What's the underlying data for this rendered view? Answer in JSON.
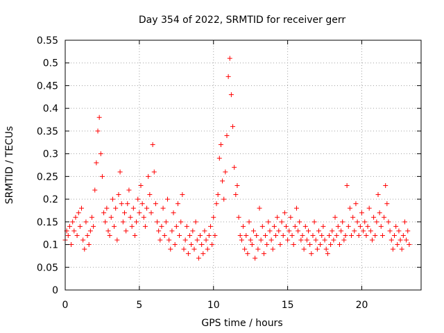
{
  "chart_data": {
    "type": "scatter",
    "title": "Day 354 of 2022, SRMTID for receiver gerr",
    "xlabel": "GPS time / hours",
    "ylabel": "SRMTID / TECUs",
    "xlim": [
      0,
      24
    ],
    "ylim": [
      0,
      0.55
    ],
    "xticks": [
      0,
      5,
      10,
      15,
      20
    ],
    "xtick_labels": [
      "0",
      "5",
      "10",
      "15",
      "20"
    ],
    "yticks": [
      0,
      0.05,
      0.1,
      0.15,
      0.2,
      0.25,
      0.3,
      0.35,
      0.4,
      0.45,
      0.5,
      0.55
    ],
    "ytick_labels": [
      "0",
      "0.05",
      "0.1",
      "0.15",
      "0.2",
      "0.25",
      "0.3",
      "0.35",
      "0.4",
      "0.45",
      "0.5",
      "0.55"
    ],
    "grid": true,
    "marker": "+",
    "color": "#ff0000",
    "x_step_hours": 0.1,
    "series": [
      {
        "name": "SRMTID",
        "x_start": 0,
        "values": [
          0.11,
          0.13,
          0.12,
          0.14,
          0.1,
          0.15,
          0.13,
          0.16,
          0.12,
          0.17,
          0.14,
          0.18,
          0.11,
          0.09,
          0.15,
          0.12,
          0.1,
          0.13,
          0.16,
          0.14,
          0.22,
          0.28,
          0.35,
          0.38,
          0.3,
          0.25,
          0.17,
          0.15,
          0.18,
          0.13,
          0.12,
          0.16,
          0.2,
          0.14,
          0.18,
          0.11,
          0.21,
          0.26,
          0.19,
          0.15,
          0.17,
          0.13,
          0.19,
          0.22,
          0.16,
          0.14,
          0.18,
          0.12,
          0.15,
          0.2,
          0.17,
          0.23,
          0.19,
          0.16,
          0.14,
          0.18,
          0.25,
          0.21,
          0.17,
          0.32,
          0.26,
          0.19,
          0.15,
          0.13,
          0.11,
          0.14,
          0.18,
          0.12,
          0.15,
          0.2,
          0.11,
          0.09,
          0.13,
          0.17,
          0.1,
          0.14,
          0.19,
          0.12,
          0.15,
          0.21,
          0.09,
          0.11,
          0.14,
          0.08,
          0.12,
          0.1,
          0.13,
          0.09,
          0.15,
          0.11,
          0.07,
          0.12,
          0.1,
          0.08,
          0.13,
          0.11,
          0.09,
          0.12,
          0.14,
          0.1,
          0.16,
          0.12,
          0.19,
          0.21,
          0.29,
          0.32,
          0.24,
          0.2,
          0.26,
          0.34,
          0.47,
          0.51,
          0.43,
          0.36,
          0.27,
          0.21,
          0.23,
          0.16,
          0.12,
          0.11,
          0.14,
          0.09,
          0.12,
          0.08,
          0.15,
          0.11,
          0.1,
          0.13,
          0.07,
          0.12,
          0.09,
          0.18,
          0.11,
          0.14,
          0.08,
          0.12,
          0.1,
          0.15,
          0.13,
          0.11,
          0.09,
          0.14,
          0.12,
          0.16,
          0.13,
          0.1,
          0.15,
          0.12,
          0.17,
          0.14,
          0.11,
          0.13,
          0.16,
          0.12,
          0.1,
          0.14,
          0.18,
          0.13,
          0.15,
          0.11,
          0.12,
          0.09,
          0.14,
          0.11,
          0.13,
          0.1,
          0.08,
          0.12,
          0.15,
          0.11,
          0.09,
          0.13,
          0.1,
          0.12,
          0.14,
          0.11,
          0.09,
          0.08,
          0.12,
          0.1,
          0.13,
          0.11,
          0.16,
          0.12,
          0.14,
          0.1,
          0.13,
          0.15,
          0.11,
          0.12,
          0.23,
          0.14,
          0.18,
          0.12,
          0.16,
          0.13,
          0.19,
          0.15,
          0.12,
          0.14,
          0.17,
          0.13,
          0.15,
          0.12,
          0.14,
          0.18,
          0.13,
          0.11,
          0.16,
          0.12,
          0.15,
          0.21,
          0.17,
          0.14,
          0.12,
          0.16,
          0.23,
          0.19,
          0.15,
          0.13,
          0.11,
          0.09,
          0.12,
          0.14,
          0.1,
          0.13,
          0.11,
          0.09,
          0.12,
          0.15,
          0.11,
          0.13,
          0.1
        ]
      }
    ]
  }
}
